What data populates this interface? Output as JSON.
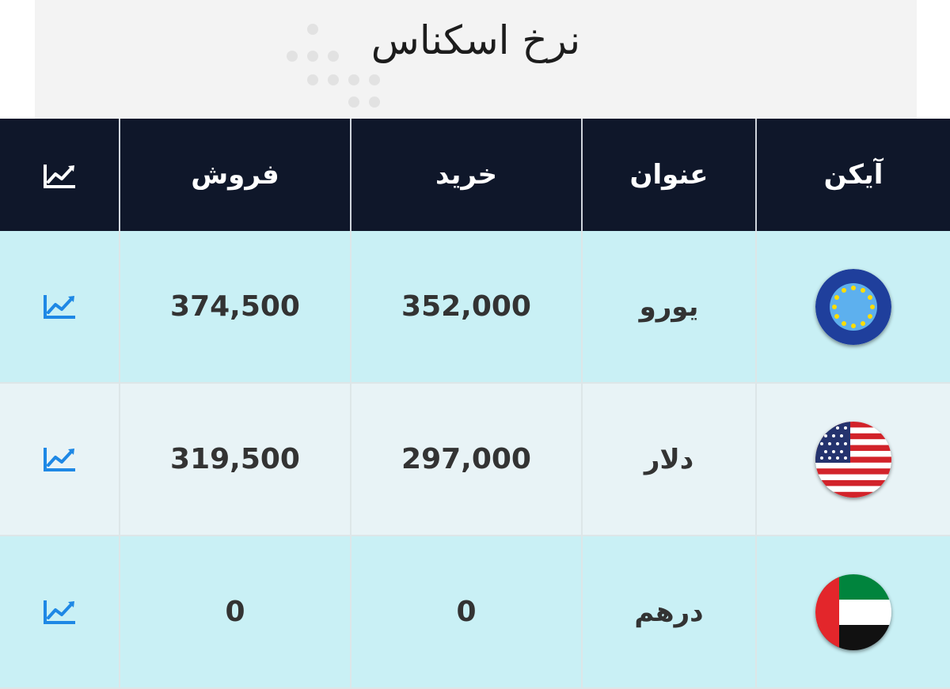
{
  "page": {
    "title": "نرخ اسکناس"
  },
  "table": {
    "headers": {
      "icon": "آیکن",
      "title": "عنوان",
      "buy": "خرید",
      "sell": "فروش",
      "chart": "chart-icon"
    },
    "rows": [
      {
        "name": "یورو",
        "buy": "352,000",
        "sell": "374,500",
        "flag": "eu-flag-icon",
        "chart": "chart-icon"
      },
      {
        "name": "دلار",
        "buy": "297,000",
        "sell": "319,500",
        "flag": "us-flag-icon",
        "chart": "chart-icon"
      },
      {
        "name": "درهم",
        "buy": "0",
        "sell": "0",
        "flag": "uae-flag-icon",
        "chart": "chart-icon"
      }
    ]
  },
  "colors": {
    "header_bg": "#0f172a",
    "row_alt": "#c9f0f5",
    "row_plain": "#e8f3f6",
    "chart_icon": "#1e88e5"
  }
}
